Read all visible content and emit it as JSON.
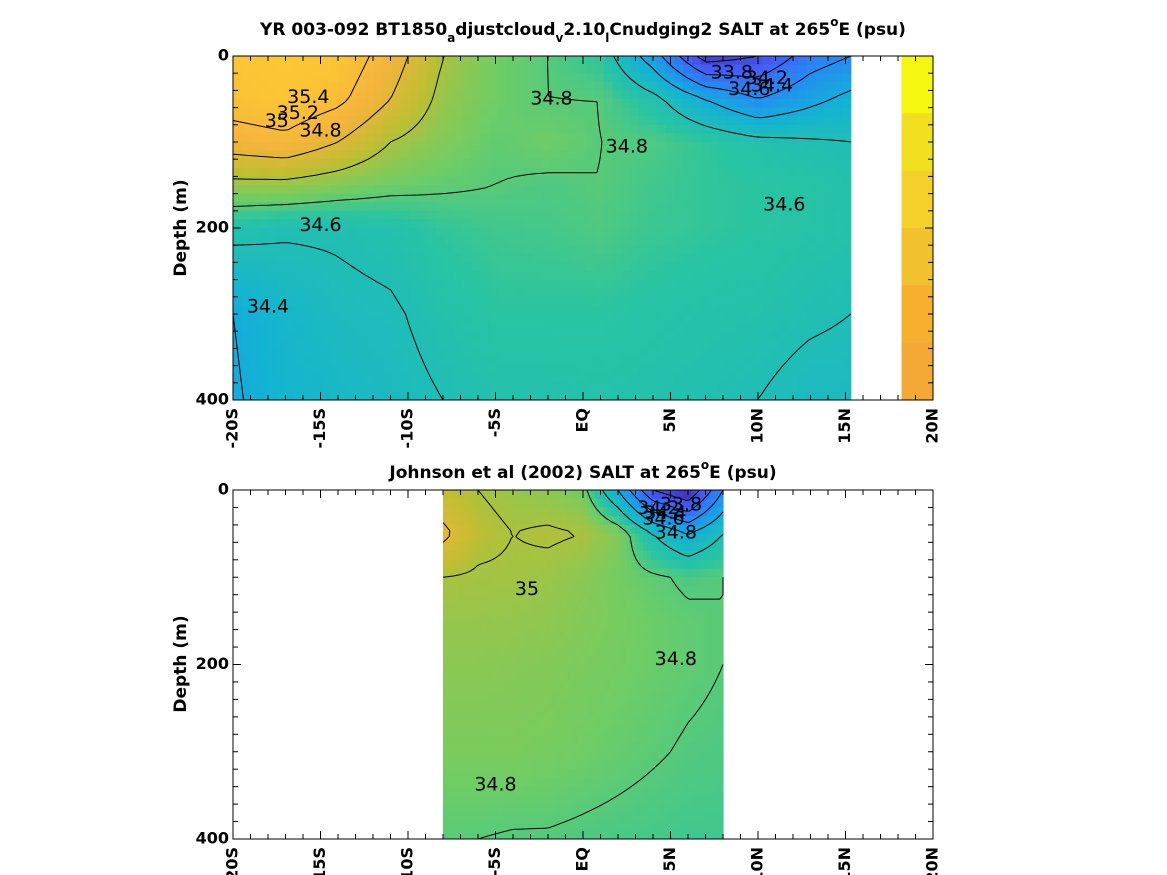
{
  "chart_data": [
    {
      "type": "heatmap",
      "title_parts": [
        "YR 003-092 BT1850",
        "a",
        "djustcloud",
        "v",
        "2.10",
        "l",
        "Cnudging2 SALT at 265",
        "o",
        "E (psu)"
      ],
      "ylabel": "Depth (m)",
      "x_tick_labels": [
        "-20S",
        "-15S",
        "-10S",
        "-5S",
        "EQ",
        "5N",
        "10N",
        "15N",
        "20N"
      ],
      "x_ticks": [
        -20,
        -15,
        -10,
        -5,
        0,
        5,
        10,
        15,
        20
      ],
      "y_tick_labels": [
        "0",
        "200",
        "400"
      ],
      "y_ticks": [
        0,
        200,
        400
      ],
      "xlim": [
        -20,
        20
      ],
      "ylim": [
        0,
        400
      ],
      "y_reversed": true,
      "data_extent_x": [
        -20,
        15.3
      ],
      "salinity_grid": {
        "lat": [
          -20,
          -17,
          -14,
          -11,
          -8,
          -5,
          -2,
          1,
          4,
          7,
          10,
          13,
          15.3
        ],
        "depth": [
          0,
          50,
          100,
          150,
          200,
          300,
          400
        ],
        "values": [
          [
            35.55,
            35.6,
            35.55,
            35.3,
            35.0,
            34.85,
            34.8,
            34.7,
            34.3,
            33.7,
            33.8,
            34.1,
            34.2
          ],
          [
            35.5,
            35.55,
            35.45,
            35.2,
            34.95,
            34.85,
            34.8,
            34.8,
            34.65,
            34.4,
            34.2,
            34.35,
            34.45
          ],
          [
            35.3,
            35.35,
            35.2,
            35.0,
            34.9,
            34.82,
            34.85,
            34.8,
            34.78,
            34.72,
            34.65,
            34.62,
            34.6
          ],
          [
            34.95,
            34.95,
            34.9,
            34.85,
            34.82,
            34.8,
            34.78,
            34.8,
            34.75,
            34.72,
            34.7,
            34.68,
            34.65
          ],
          [
            34.65,
            34.62,
            34.62,
            34.65,
            34.72,
            34.75,
            34.76,
            34.78,
            34.74,
            34.72,
            34.7,
            34.68,
            34.66
          ],
          [
            34.4,
            34.5,
            34.56,
            34.58,
            34.65,
            34.7,
            34.7,
            34.7,
            34.68,
            34.66,
            34.65,
            34.62,
            34.6
          ],
          [
            34.38,
            34.48,
            34.52,
            34.55,
            34.6,
            34.65,
            34.65,
            34.66,
            34.65,
            34.63,
            34.6,
            34.55,
            34.55
          ]
        ]
      },
      "contour_labels": [
        {
          "text": "35.4",
          "lat": -15.7,
          "depth": 48
        },
        {
          "text": "35.2",
          "lat": -16.3,
          "depth": 67
        },
        {
          "text": "35",
          "lat": -17.5,
          "depth": 76
        },
        {
          "text": "34.8",
          "lat": -15.0,
          "depth": 87
        },
        {
          "text": "34.6",
          "lat": -15.0,
          "depth": 197
        },
        {
          "text": "34.4",
          "lat": -18.0,
          "depth": 292
        },
        {
          "text": "34.8",
          "lat": -1.8,
          "depth": 50
        },
        {
          "text": "34.8",
          "lat": 2.5,
          "depth": 106
        },
        {
          "text": "33.8",
          "lat": 8.5,
          "depth": 20
        },
        {
          "text": "34.2",
          "lat": 10.5,
          "depth": 26
        },
        {
          "text": "34.4",
          "lat": 10.8,
          "depth": 35
        },
        {
          "text": "34.6",
          "lat": 9.5,
          "depth": 39
        },
        {
          "text": "34.6",
          "lat": 11.5,
          "depth": 173
        }
      ],
      "observed_side_column": {
        "lat_range": [
          18.2,
          20
        ],
        "colors": [
          "#f5f70f",
          "#f0e020",
          "#f4d02a",
          "#f2c12e",
          "#f5b02f",
          "#f4a835"
        ]
      }
    },
    {
      "type": "heatmap",
      "title_parts": [
        "Johnson et al (2002) SALT at 265",
        "o",
        "E (psu)"
      ],
      "ylabel": "Depth (m)",
      "x_tick_labels": [
        "-20S",
        "-15S",
        "-10S",
        "-5S",
        "EQ",
        "5N",
        "10N",
        "15N",
        "20N"
      ],
      "x_ticks": [
        -20,
        -15,
        -10,
        -5,
        0,
        5,
        10,
        15,
        20
      ],
      "y_tick_labels": [
        "0",
        "200",
        "400"
      ],
      "y_ticks": [
        0,
        200,
        400
      ],
      "xlim": [
        -20,
        20
      ],
      "ylim": [
        0,
        400
      ],
      "y_reversed": true,
      "data_extent_x": [
        -8,
        8
      ],
      "salinity_grid": {
        "lat": [
          -8,
          -6,
          -4,
          -2,
          0,
          2,
          4,
          6,
          8
        ],
        "depth": [
          0,
          50,
          100,
          150,
          200,
          300,
          400
        ],
        "values": [
          [
            35.05,
            35.0,
            34.95,
            34.92,
            34.85,
            34.4,
            33.8,
            33.6,
            34.2
          ],
          [
            35.25,
            35.05,
            35.0,
            35.02,
            35.0,
            34.9,
            34.6,
            34.4,
            34.6
          ],
          [
            35.0,
            34.98,
            34.98,
            34.96,
            34.92,
            34.86,
            34.82,
            34.78,
            34.8
          ],
          [
            34.95,
            34.95,
            34.94,
            34.93,
            34.9,
            34.87,
            34.84,
            34.82,
            34.8
          ],
          [
            34.92,
            34.92,
            34.91,
            34.9,
            34.88,
            34.86,
            34.84,
            34.82,
            34.8
          ],
          [
            34.88,
            34.88,
            34.88,
            34.87,
            34.85,
            34.83,
            34.81,
            34.79,
            34.78
          ],
          [
            34.8,
            34.8,
            34.79,
            34.79,
            34.78,
            34.77,
            34.76,
            34.75,
            34.75
          ]
        ]
      },
      "contour_labels": [
        {
          "text": "33.8",
          "lat": 5.6,
          "depth": 17
        },
        {
          "text": "34.2",
          "lat": 4.3,
          "depth": 21
        },
        {
          "text": "34.4",
          "lat": 4.7,
          "depth": 27
        },
        {
          "text": "34.6",
          "lat": 4.6,
          "depth": 33
        },
        {
          "text": "34.8",
          "lat": 5.3,
          "depth": 49
        },
        {
          "text": "35",
          "lat": -3.2,
          "depth": 114
        },
        {
          "text": "34.8",
          "lat": 5.3,
          "depth": 194
        },
        {
          "text": "34.8",
          "lat": -5.0,
          "depth": 338
        }
      ]
    }
  ]
}
